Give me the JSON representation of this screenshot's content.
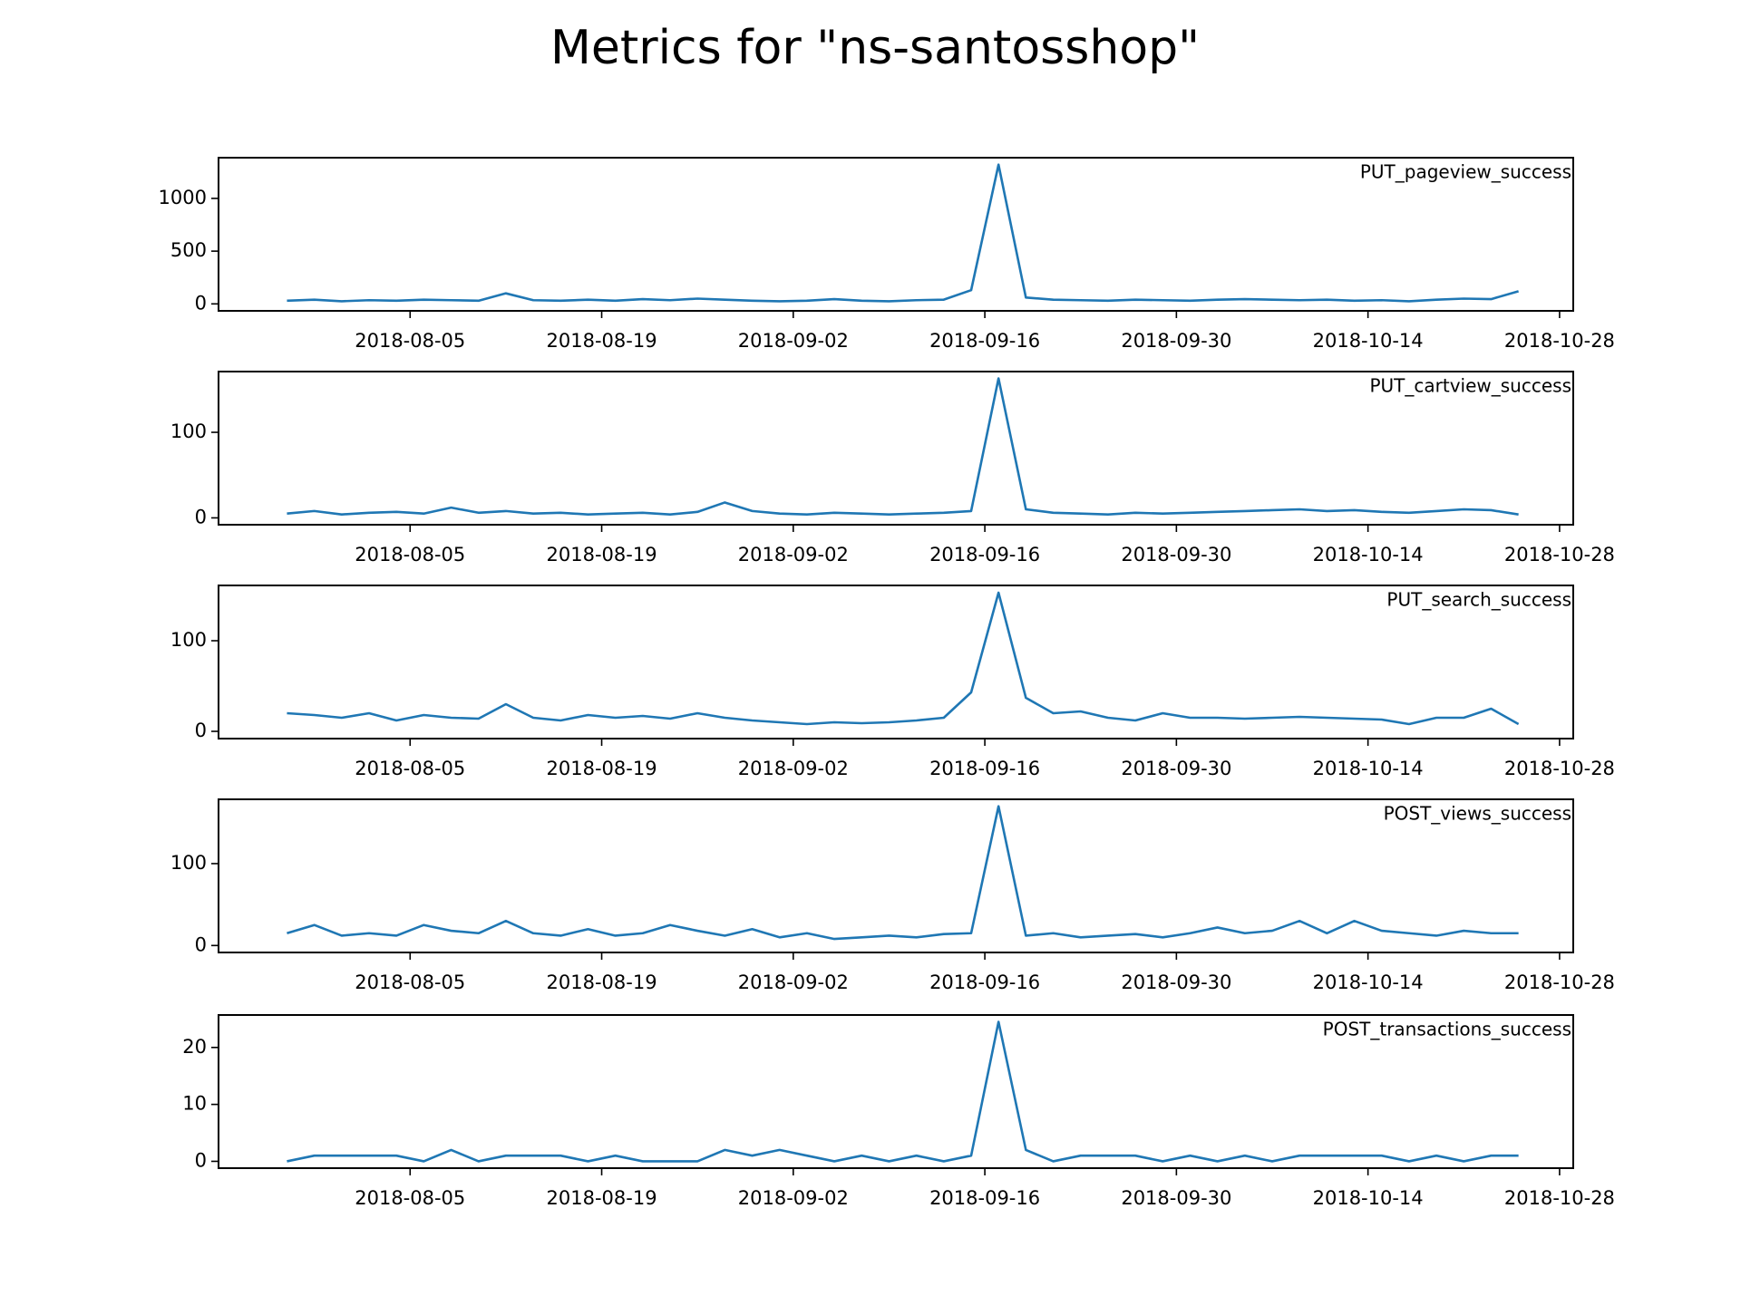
{
  "title": "Metrics for \"ns-santosshop\"",
  "chart_data": [
    {
      "type": "line",
      "legend": "upper right",
      "x": [
        "2018-07-27",
        "2018-07-29",
        "2018-07-31",
        "2018-08-02",
        "2018-08-04",
        "2018-08-06",
        "2018-08-08",
        "2018-08-10",
        "2018-08-12",
        "2018-08-14",
        "2018-08-16",
        "2018-08-18",
        "2018-08-20",
        "2018-08-22",
        "2018-08-24",
        "2018-08-26",
        "2018-08-28",
        "2018-08-30",
        "2018-09-01",
        "2018-09-03",
        "2018-09-05",
        "2018-09-07",
        "2018-09-09",
        "2018-09-11",
        "2018-09-13",
        "2018-09-15",
        "2018-09-17",
        "2018-09-19",
        "2018-09-21",
        "2018-09-23",
        "2018-09-25",
        "2018-09-27",
        "2018-09-29",
        "2018-10-01",
        "2018-10-03",
        "2018-10-05",
        "2018-10-07",
        "2018-10-09",
        "2018-10-11",
        "2018-10-13",
        "2018-10-15",
        "2018-10-17",
        "2018-10-19",
        "2018-10-21",
        "2018-10-23",
        "2018-10-25"
      ],
      "series": [
        {
          "name": "PUT_pageview_success",
          "color": "#1f77b4",
          "values": [
            30,
            40,
            25,
            35,
            30,
            40,
            35,
            30,
            100,
            35,
            30,
            40,
            30,
            45,
            35,
            50,
            40,
            30,
            25,
            30,
            45,
            30,
            25,
            35,
            40,
            130,
            1320,
            60,
            40,
            35,
            30,
            40,
            35,
            30,
            40,
            45,
            40,
            35,
            40,
            30,
            35,
            25,
            40,
            50,
            45,
            120
          ]
        }
      ],
      "xlim": [
        "2018-07-22",
        "2018-10-29"
      ],
      "xticks": [
        "2018-08-05",
        "2018-08-19",
        "2018-09-02",
        "2018-09-16",
        "2018-09-30",
        "2018-10-14",
        "2018-10-28"
      ],
      "ylim": [
        -66,
        1386
      ],
      "yticks": [
        0,
        500,
        1000
      ]
    },
    {
      "type": "line",
      "legend": "upper right",
      "x": [
        "2018-07-27",
        "2018-07-29",
        "2018-07-31",
        "2018-08-02",
        "2018-08-04",
        "2018-08-06",
        "2018-08-08",
        "2018-08-10",
        "2018-08-12",
        "2018-08-14",
        "2018-08-16",
        "2018-08-18",
        "2018-08-20",
        "2018-08-22",
        "2018-08-24",
        "2018-08-26",
        "2018-08-28",
        "2018-08-30",
        "2018-09-01",
        "2018-09-03",
        "2018-09-05",
        "2018-09-07",
        "2018-09-09",
        "2018-09-11",
        "2018-09-13",
        "2018-09-15",
        "2018-09-17",
        "2018-09-19",
        "2018-09-21",
        "2018-09-23",
        "2018-09-25",
        "2018-09-27",
        "2018-09-29",
        "2018-10-01",
        "2018-10-03",
        "2018-10-05",
        "2018-10-07",
        "2018-10-09",
        "2018-10-11",
        "2018-10-13",
        "2018-10-15",
        "2018-10-17",
        "2018-10-19",
        "2018-10-21",
        "2018-10-23",
        "2018-10-25"
      ],
      "series": [
        {
          "name": "PUT_cartview_success",
          "color": "#1f77b4",
          "values": [
            5,
            8,
            4,
            6,
            7,
            5,
            12,
            6,
            8,
            5,
            6,
            4,
            5,
            6,
            4,
            7,
            18,
            8,
            5,
            4,
            6,
            5,
            4,
            5,
            6,
            8,
            163,
            10,
            6,
            5,
            4,
            6,
            5,
            6,
            7,
            8,
            9,
            10,
            8,
            9,
            7,
            6,
            8,
            10,
            9,
            4
          ]
        }
      ],
      "xlim": [
        "2018-07-22",
        "2018-10-29"
      ],
      "xticks": [
        "2018-08-05",
        "2018-08-19",
        "2018-09-02",
        "2018-09-16",
        "2018-09-30",
        "2018-10-14",
        "2018-10-28"
      ],
      "ylim": [
        -8,
        171
      ],
      "yticks": [
        0,
        100
      ]
    },
    {
      "type": "line",
      "legend": "upper right",
      "x": [
        "2018-07-27",
        "2018-07-29",
        "2018-07-31",
        "2018-08-02",
        "2018-08-04",
        "2018-08-06",
        "2018-08-08",
        "2018-08-10",
        "2018-08-12",
        "2018-08-14",
        "2018-08-16",
        "2018-08-18",
        "2018-08-20",
        "2018-08-22",
        "2018-08-24",
        "2018-08-26",
        "2018-08-28",
        "2018-08-30",
        "2018-09-01",
        "2018-09-03",
        "2018-09-05",
        "2018-09-07",
        "2018-09-09",
        "2018-09-11",
        "2018-09-13",
        "2018-09-15",
        "2018-09-17",
        "2018-09-19",
        "2018-09-21",
        "2018-09-23",
        "2018-09-25",
        "2018-09-27",
        "2018-09-29",
        "2018-10-01",
        "2018-10-03",
        "2018-10-05",
        "2018-10-07",
        "2018-10-09",
        "2018-10-11",
        "2018-10-13",
        "2018-10-15",
        "2018-10-17",
        "2018-10-19",
        "2018-10-21",
        "2018-10-23",
        "2018-10-25"
      ],
      "series": [
        {
          "name": "PUT_search_success",
          "color": "#1f77b4",
          "values": [
            20,
            18,
            15,
            20,
            12,
            18,
            15,
            14,
            30,
            15,
            12,
            18,
            15,
            17,
            14,
            20,
            15,
            12,
            10,
            8,
            10,
            9,
            10,
            12,
            15,
            43,
            153,
            37,
            20,
            22,
            15,
            12,
            20,
            15,
            15,
            14,
            15,
            16,
            15,
            14,
            13,
            8,
            15,
            15,
            25,
            8
          ]
        }
      ],
      "xlim": [
        "2018-07-22",
        "2018-10-29"
      ],
      "xticks": [
        "2018-08-05",
        "2018-08-19",
        "2018-09-02",
        "2018-09-16",
        "2018-09-30",
        "2018-10-14",
        "2018-10-28"
      ],
      "ylim": [
        -8,
        161
      ],
      "yticks": [
        0,
        100
      ]
    },
    {
      "type": "line",
      "legend": "upper right",
      "x": [
        "2018-07-27",
        "2018-07-29",
        "2018-07-31",
        "2018-08-02",
        "2018-08-04",
        "2018-08-06",
        "2018-08-08",
        "2018-08-10",
        "2018-08-12",
        "2018-08-14",
        "2018-08-16",
        "2018-08-18",
        "2018-08-20",
        "2018-08-22",
        "2018-08-24",
        "2018-08-26",
        "2018-08-28",
        "2018-08-30",
        "2018-09-01",
        "2018-09-03",
        "2018-09-05",
        "2018-09-07",
        "2018-09-09",
        "2018-09-11",
        "2018-09-13",
        "2018-09-15",
        "2018-09-17",
        "2018-09-19",
        "2018-09-21",
        "2018-09-23",
        "2018-09-25",
        "2018-09-27",
        "2018-09-29",
        "2018-10-01",
        "2018-10-03",
        "2018-10-05",
        "2018-10-07",
        "2018-10-09",
        "2018-10-11",
        "2018-10-13",
        "2018-10-15",
        "2018-10-17",
        "2018-10-19",
        "2018-10-21",
        "2018-10-23",
        "2018-10-25"
      ],
      "series": [
        {
          "name": "POST_views_success",
          "color": "#1f77b4",
          "values": [
            15,
            25,
            12,
            15,
            12,
            25,
            18,
            15,
            30,
            15,
            12,
            20,
            12,
            15,
            25,
            18,
            12,
            20,
            10,
            15,
            8,
            10,
            12,
            10,
            14,
            15,
            170,
            12,
            15,
            10,
            12,
            14,
            10,
            15,
            22,
            15,
            18,
            30,
            15,
            30,
            18,
            15,
            12,
            18,
            15,
            15
          ]
        }
      ],
      "xlim": [
        "2018-07-22",
        "2018-10-29"
      ],
      "xticks": [
        "2018-08-05",
        "2018-08-19",
        "2018-09-02",
        "2018-09-16",
        "2018-09-30",
        "2018-10-14",
        "2018-10-28"
      ],
      "ylim": [
        -8.5,
        178.5
      ],
      "yticks": [
        0,
        100
      ]
    },
    {
      "type": "line",
      "legend": "upper right",
      "x": [
        "2018-07-27",
        "2018-07-29",
        "2018-07-31",
        "2018-08-02",
        "2018-08-04",
        "2018-08-06",
        "2018-08-08",
        "2018-08-10",
        "2018-08-12",
        "2018-08-14",
        "2018-08-16",
        "2018-08-18",
        "2018-08-20",
        "2018-08-22",
        "2018-08-24",
        "2018-08-26",
        "2018-08-28",
        "2018-08-30",
        "2018-09-01",
        "2018-09-03",
        "2018-09-05",
        "2018-09-07",
        "2018-09-09",
        "2018-09-11",
        "2018-09-13",
        "2018-09-15",
        "2018-09-17",
        "2018-09-19",
        "2018-09-21",
        "2018-09-23",
        "2018-09-25",
        "2018-09-27",
        "2018-09-29",
        "2018-10-01",
        "2018-10-03",
        "2018-10-05",
        "2018-10-07",
        "2018-10-09",
        "2018-10-11",
        "2018-10-13",
        "2018-10-15",
        "2018-10-17",
        "2018-10-19",
        "2018-10-21",
        "2018-10-23",
        "2018-10-25"
      ],
      "series": [
        {
          "name": "POST_transactions_success",
          "color": "#1f77b4",
          "values": [
            0,
            1,
            1,
            1,
            1,
            0,
            2,
            0,
            1,
            1,
            1,
            0,
            1,
            0,
            0,
            0,
            2,
            1,
            2,
            1,
            0,
            1,
            0,
            1,
            0,
            1,
            24.5,
            2,
            0,
            1,
            1,
            1,
            0,
            1,
            0,
            1,
            0,
            1,
            1,
            1,
            1,
            0,
            1,
            0,
            1,
            1
          ]
        }
      ],
      "xlim": [
        "2018-07-22",
        "2018-10-29"
      ],
      "xticks": [
        "2018-08-05",
        "2018-08-19",
        "2018-09-02",
        "2018-09-16",
        "2018-09-30",
        "2018-10-14",
        "2018-10-28"
      ],
      "ylim": [
        -1.2,
        25.7
      ],
      "yticks": [
        0,
        10,
        20
      ]
    }
  ]
}
